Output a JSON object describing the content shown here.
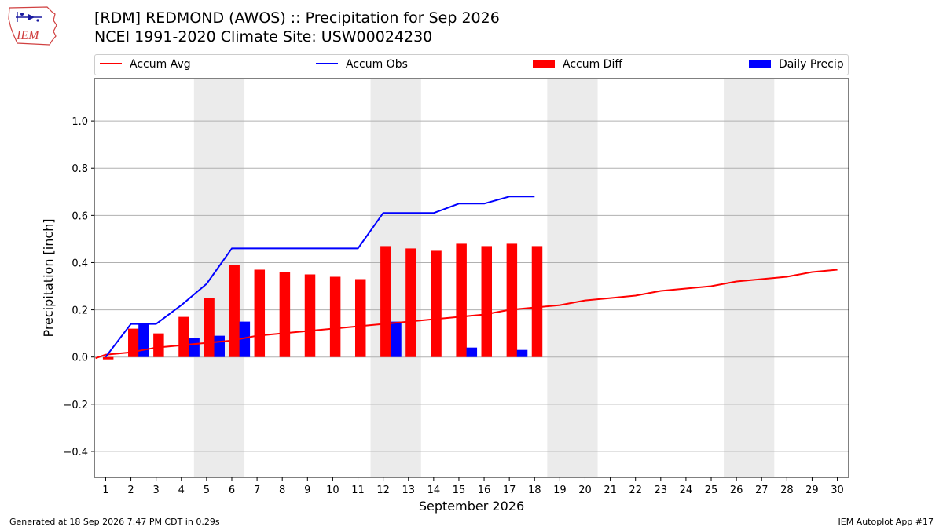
{
  "header": {
    "logo_text": "IEM",
    "title_line1": "[RDM] REDMOND (AWOS) :: Precipitation for Sep 2026",
    "title_line2": "NCEI 1991-2020 Climate Site: USW00024230"
  },
  "legend": {
    "items": [
      {
        "label": "Accum Avg",
        "kind": "line",
        "color": "#ff0000"
      },
      {
        "label": "Accum Obs",
        "kind": "line",
        "color": "#0000ff"
      },
      {
        "label": "Accum Diff",
        "kind": "box",
        "color": "#ff0000"
      },
      {
        "label": "Daily Precip",
        "kind": "box",
        "color": "#0000ff"
      }
    ]
  },
  "footer": {
    "generated": "Generated at 18 Sep 2026 7:47 PM CDT in 0.29s",
    "app": "IEM Autoplot App #17"
  },
  "chart_data": {
    "type": "bar",
    "xlabel": "September 2026",
    "ylabel": "Precipitation [inch]",
    "ylim": [
      -0.51,
      1.18
    ],
    "yticks": [
      -0.4,
      -0.2,
      0.0,
      0.2,
      0.4,
      0.6,
      0.8,
      1.0
    ],
    "ytick_labels": [
      "−0.4",
      "−0.2",
      "0.0",
      "0.2",
      "0.4",
      "0.6",
      "0.8",
      "1.0"
    ],
    "x": [
      1,
      2,
      3,
      4,
      5,
      6,
      7,
      8,
      9,
      10,
      11,
      12,
      13,
      14,
      15,
      16,
      17,
      18,
      19,
      20,
      21,
      22,
      23,
      24,
      25,
      26,
      27,
      28,
      29,
      30
    ],
    "xtick_labels": [
      "1",
      "2",
      "3",
      "4",
      "5",
      "6",
      "7",
      "8",
      "9",
      "10",
      "11",
      "12",
      "13",
      "14",
      "15",
      "16",
      "17",
      "18",
      "19",
      "20",
      "21",
      "22",
      "23",
      "24",
      "25",
      "26",
      "27",
      "28",
      "29",
      "30"
    ],
    "grid": "horizontal",
    "weekend_shading": [
      [
        5,
        6
      ],
      [
        12,
        13
      ],
      [
        19,
        20
      ],
      [
        26,
        27
      ]
    ],
    "series": [
      {
        "name": "Accum Avg",
        "type": "line",
        "color": "#ff0000",
        "x": [
          0.6,
          1,
          2,
          3,
          4,
          5,
          6,
          7,
          8,
          9,
          10,
          11,
          12,
          13,
          14,
          15,
          16,
          17,
          18,
          19,
          20,
          21,
          22,
          23,
          24,
          25,
          26,
          27,
          28,
          29,
          30
        ],
        "values": [
          -0.005,
          0.01,
          0.02,
          0.04,
          0.05,
          0.06,
          0.07,
          0.09,
          0.1,
          0.11,
          0.12,
          0.13,
          0.14,
          0.15,
          0.16,
          0.17,
          0.18,
          0.2,
          0.21,
          0.22,
          0.24,
          0.25,
          0.26,
          0.28,
          0.29,
          0.3,
          0.32,
          0.33,
          0.34,
          0.36,
          0.37
        ]
      },
      {
        "name": "Accum Obs",
        "type": "line",
        "color": "#0000ff",
        "x": [
          1,
          2,
          3,
          4,
          5,
          6,
          7,
          8,
          9,
          10,
          11,
          12,
          13,
          14,
          15,
          16,
          17,
          18
        ],
        "values": [
          0.0,
          0.14,
          0.14,
          0.22,
          0.31,
          0.46,
          0.46,
          0.46,
          0.46,
          0.46,
          0.46,
          0.61,
          0.61,
          0.61,
          0.65,
          0.65,
          0.68,
          0.68
        ]
      },
      {
        "name": "Accum Diff",
        "type": "bar",
        "color": "#ff0000",
        "x": [
          1,
          2,
          3,
          4,
          5,
          6,
          7,
          8,
          9,
          10,
          11,
          12,
          13,
          14,
          15,
          16,
          17,
          18
        ],
        "values": [
          -0.01,
          0.12,
          0.1,
          0.17,
          0.25,
          0.39,
          0.37,
          0.36,
          0.35,
          0.34,
          0.33,
          0.47,
          0.46,
          0.45,
          0.48,
          0.47,
          0.48,
          0.47
        ]
      },
      {
        "name": "Daily Precip",
        "type": "bar",
        "color": "#0000ff",
        "x": [
          1,
          2,
          3,
          4,
          5,
          6,
          7,
          8,
          9,
          10,
          11,
          12,
          13,
          14,
          15,
          16,
          17,
          18
        ],
        "values": [
          0,
          0.14,
          0,
          0.08,
          0.09,
          0.15,
          0,
          0,
          0,
          0,
          0,
          0.15,
          0,
          0,
          0.04,
          0,
          0.03,
          0
        ]
      }
    ]
  }
}
